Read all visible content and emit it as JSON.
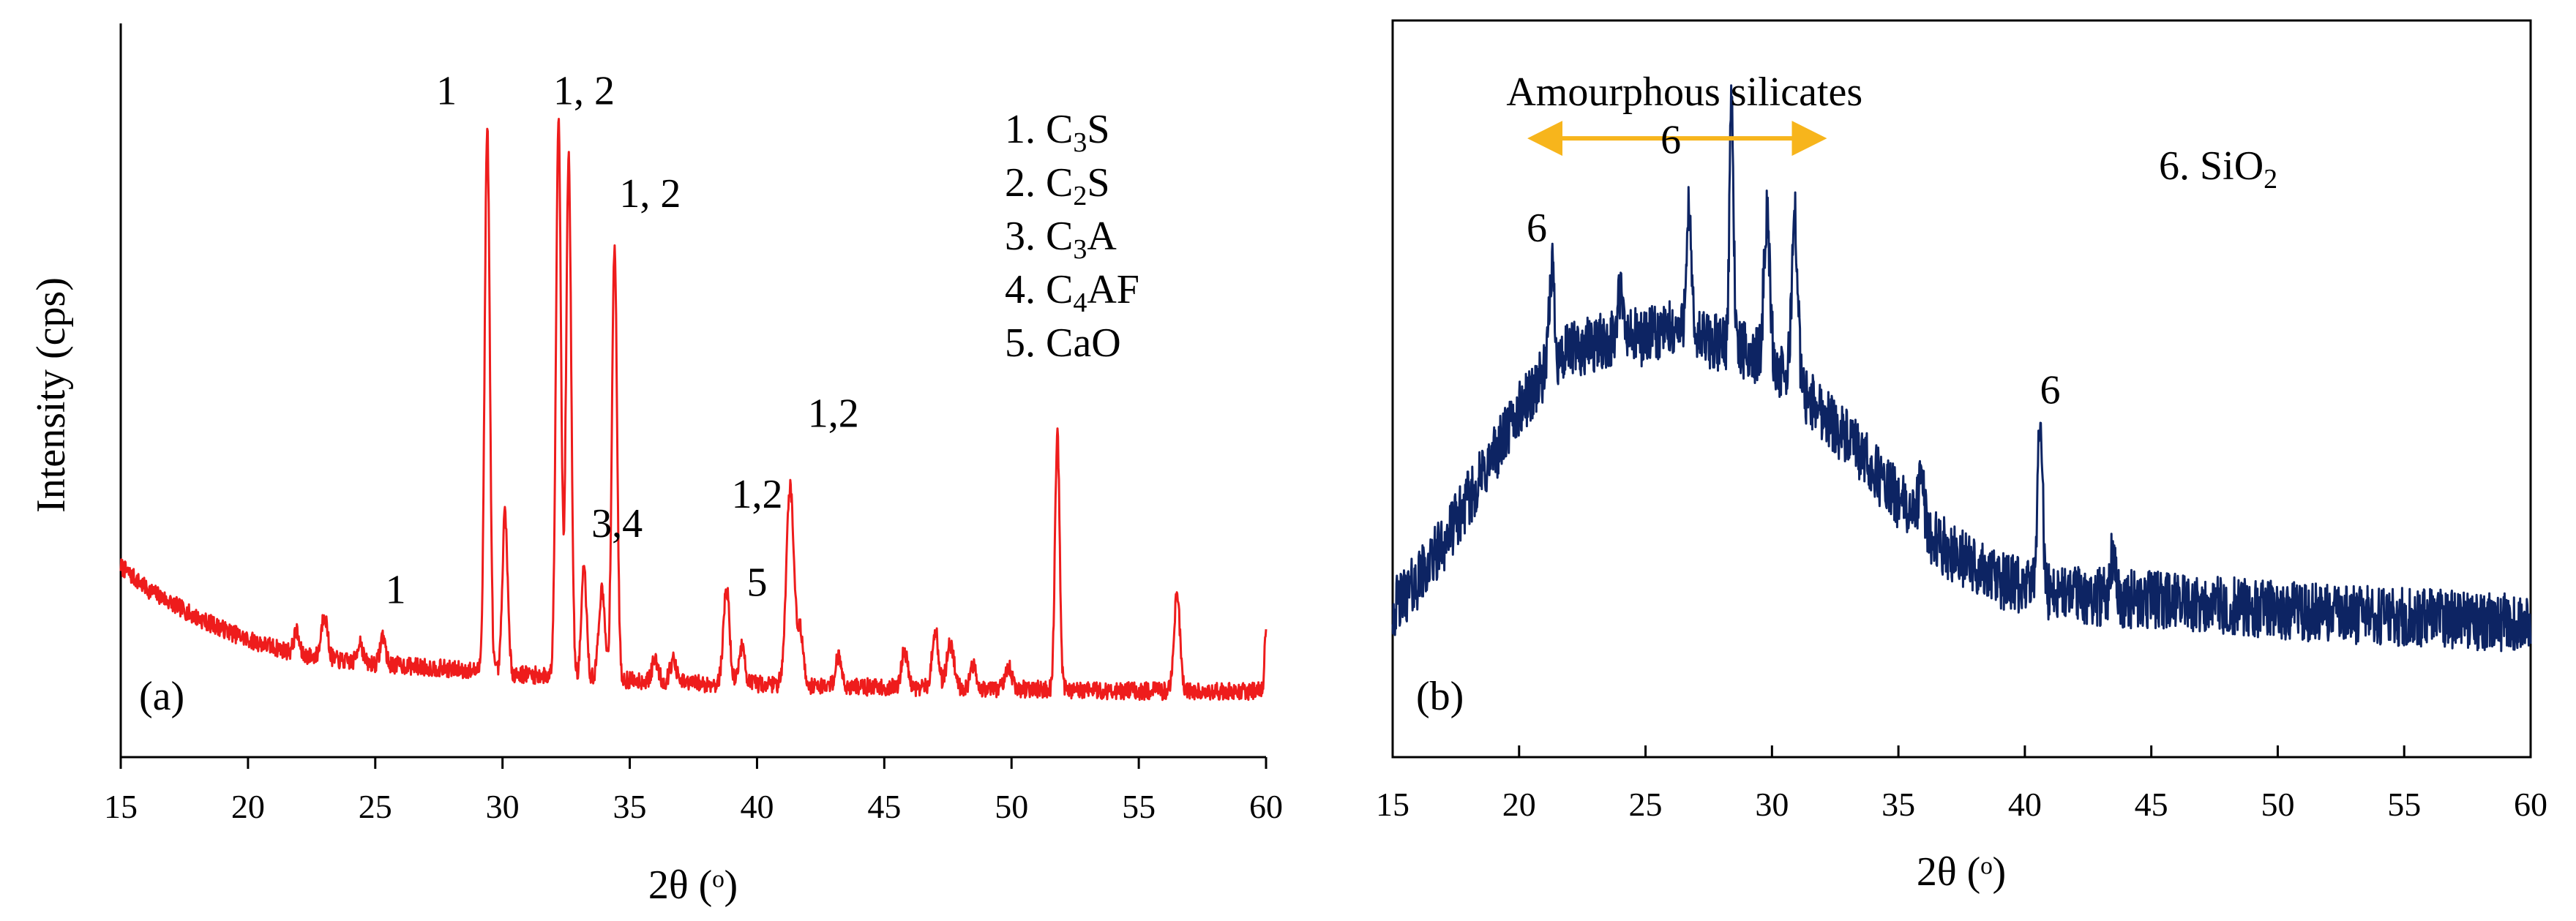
{
  "chart_data": [
    {
      "type": "line",
      "panel": "(a)",
      "xlabel": "2θ (ᵒ)",
      "ylabel": "Intensity (cps)",
      "xlim": [
        15,
        60
      ],
      "xticks": [
        15,
        20,
        25,
        30,
        35,
        40,
        45,
        50,
        55,
        60
      ],
      "ylim": [
        0,
        100
      ],
      "grid": false,
      "color": "#ee1c1c",
      "baseline": {
        "x": [
          15,
          16,
          18,
          20,
          22,
          24,
          26,
          28,
          30,
          32,
          35,
          38,
          40,
          42,
          45,
          50,
          55,
          60
        ],
        "y": [
          26,
          23,
          19,
          16,
          14,
          13,
          12.5,
          12,
          11.5,
          11,
          10.5,
          10,
          10,
          9.8,
          9.5,
          9.3,
          9,
          9
        ]
      },
      "peaks": [
        {
          "x": 21.9,
          "h": 3,
          "w": 0.1
        },
        {
          "x": 23.0,
          "h": 6,
          "w": 0.12
        },
        {
          "x": 24.4,
          "h": 3,
          "w": 0.1
        },
        {
          "x": 25.3,
          "h": 4,
          "w": 0.1
        },
        {
          "x": 29.4,
          "h": 74,
          "w": 0.1
        },
        {
          "x": 30.1,
          "h": 22,
          "w": 0.1
        },
        {
          "x": 32.2,
          "h": 76,
          "w": 0.1
        },
        {
          "x": 32.6,
          "h": 71,
          "w": 0.1
        },
        {
          "x": 33.2,
          "h": 15,
          "w": 0.1
        },
        {
          "x": 33.9,
          "h": 12,
          "w": 0.12
        },
        {
          "x": 34.4,
          "h": 59,
          "w": 0.1
        },
        {
          "x": 36.0,
          "h": 3,
          "w": 0.12
        },
        {
          "x": 36.7,
          "h": 3,
          "w": 0.12
        },
        {
          "x": 38.8,
          "h": 13,
          "w": 0.12
        },
        {
          "x": 39.4,
          "h": 5,
          "w": 0.12
        },
        {
          "x": 41.3,
          "h": 27,
          "w": 0.15
        },
        {
          "x": 41.7,
          "h": 7,
          "w": 0.12
        },
        {
          "x": 43.2,
          "h": 4,
          "w": 0.12
        },
        {
          "x": 45.8,
          "h": 5,
          "w": 0.12
        },
        {
          "x": 47.0,
          "h": 8,
          "w": 0.12
        },
        {
          "x": 47.6,
          "h": 6,
          "w": 0.15
        },
        {
          "x": 48.5,
          "h": 3,
          "w": 0.12
        },
        {
          "x": 49.9,
          "h": 3,
          "w": 0.12
        },
        {
          "x": 51.8,
          "h": 35,
          "w": 0.09
        },
        {
          "x": 56.5,
          "h": 13,
          "w": 0.12
        },
        {
          "x": 60.0,
          "h": 8,
          "w": 0.06
        }
      ],
      "annotations": [
        {
          "text": "1",
          "x": 27.8,
          "y": 89
        },
        {
          "text": "1, 2",
          "x": 33.2,
          "y": 89
        },
        {
          "text": "1, 2",
          "x": 35.8,
          "y": 75
        },
        {
          "text": "1,2",
          "x": 43.0,
          "y": 45
        },
        {
          "text": "1,2",
          "x": 40.0,
          "y": 34
        },
        {
          "text": "3,4",
          "x": 34.5,
          "y": 30
        },
        {
          "text": "5",
          "x": 40.0,
          "y": 22
        },
        {
          "text": "1",
          "x": 25.8,
          "y": 21
        }
      ],
      "legend": [
        {
          "prefix": "1. C",
          "sub": "3",
          "suffix": "S"
        },
        {
          "prefix": "2. C",
          "sub": "2",
          "suffix": "S"
        },
        {
          "prefix": "3. C",
          "sub": "3",
          "suffix": "A"
        },
        {
          "prefix": "4. C",
          "sub": "4",
          "suffix": "AF"
        },
        {
          "prefix": "5. CaO",
          "sub": "",
          "suffix": ""
        }
      ],
      "legend_position": "top-right"
    },
    {
      "type": "line",
      "panel": "(b)",
      "xlabel": "2θ (ᵒ)",
      "ylabel": "",
      "xlim": [
        15,
        60
      ],
      "xticks": [
        15,
        20,
        25,
        30,
        35,
        40,
        45,
        50,
        55,
        60
      ],
      "ylim": [
        0,
        100
      ],
      "grid": false,
      "color": "#0d2463",
      "baseline": {
        "x": [
          15,
          16,
          17,
          18,
          19,
          20,
          21,
          22,
          23,
          24,
          25,
          26,
          27,
          28,
          29,
          30,
          31,
          32,
          33,
          34,
          35,
          36,
          37,
          38,
          39,
          40,
          42,
          44,
          46,
          48,
          50,
          52,
          55,
          58,
          60
        ],
        "y": [
          20,
          24,
          29,
          35,
          41,
          47,
          52,
          55,
          56,
          57,
          57,
          58,
          57,
          56,
          55,
          53,
          50,
          47,
          43,
          39,
          35,
          31,
          28,
          26,
          24,
          23,
          22,
          21.5,
          21,
          20.5,
          20,
          19.5,
          19,
          18.5,
          18
        ]
      },
      "noise_amplitude": 4,
      "peaks": [
        {
          "x": 21.3,
          "h": 14,
          "w": 0.1
        },
        {
          "x": 24.0,
          "h": 6,
          "w": 0.1
        },
        {
          "x": 26.7,
          "h": 17,
          "w": 0.1
        },
        {
          "x": 28.4,
          "h": 34,
          "w": 0.08
        },
        {
          "x": 29.8,
          "h": 20,
          "w": 0.12
        },
        {
          "x": 30.9,
          "h": 23,
          "w": 0.12
        },
        {
          "x": 35.9,
          "h": 6,
          "w": 0.12
        },
        {
          "x": 40.6,
          "h": 24,
          "w": 0.1
        },
        {
          "x": 43.5,
          "h": 6,
          "w": 0.12
        }
      ],
      "arrow": {
        "label": "Amourphous silicates",
        "x_start": 20.5,
        "x_end": 32.0,
        "y": 84
      },
      "annotations": [
        {
          "text": "6",
          "x": 20.7,
          "y": 70
        },
        {
          "text": "6",
          "x": 26.0,
          "y": 82
        },
        {
          "text": "6",
          "x": 41.0,
          "y": 48
        }
      ],
      "legend": [
        {
          "prefix": "6. SiO",
          "sub": "2",
          "suffix": ""
        }
      ],
      "legend_position": "top-right"
    }
  ]
}
